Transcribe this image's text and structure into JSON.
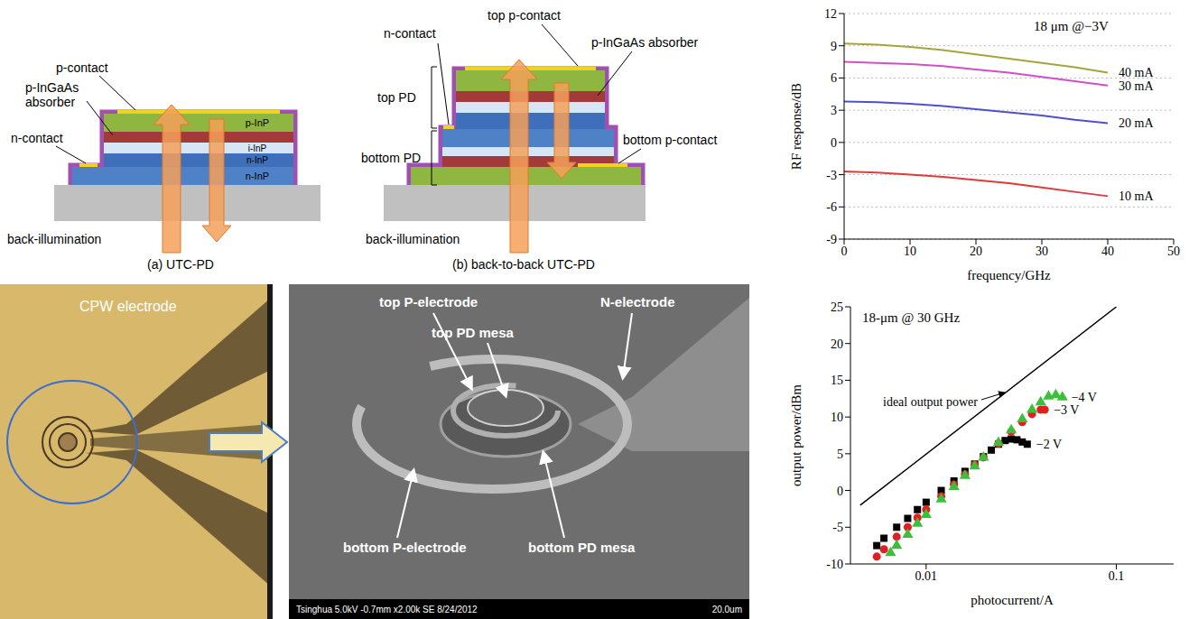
{
  "chart_data": [
    {
      "type": "line",
      "annotation": "18 μm @−3V",
      "x_label": "frequency/GHz",
      "y_label": "RF response/dB",
      "xlim": [
        0,
        50
      ],
      "xticks": [
        0,
        10,
        20,
        30,
        40,
        50
      ],
      "ylim": [
        -9,
        12
      ],
      "yticks": [
        -9,
        -6,
        -3,
        0,
        3,
        6,
        9,
        12
      ],
      "grid": true,
      "x": [
        0,
        5,
        10,
        15,
        20,
        25,
        30,
        35,
        40
      ],
      "series": [
        {
          "name": "40 mA",
          "color": "#a5a53a",
          "values": [
            9.2,
            9.1,
            8.9,
            8.6,
            8.2,
            7.8,
            7.4,
            7.0,
            6.5
          ]
        },
        {
          "name": "30 mA",
          "color": "#d24fc4",
          "values": [
            7.5,
            7.4,
            7.3,
            7.1,
            6.8,
            6.5,
            6.1,
            5.7,
            5.3
          ]
        },
        {
          "name": "20 mA",
          "color": "#4f4fd0",
          "values": [
            3.8,
            3.75,
            3.6,
            3.4,
            3.1,
            2.8,
            2.5,
            2.1,
            1.8
          ]
        },
        {
          "name": "10 mA",
          "color": "#e03a3a",
          "values": [
            -2.7,
            -2.8,
            -3.0,
            -3.2,
            -3.5,
            -3.8,
            -4.2,
            -4.6,
            -5.0
          ]
        }
      ]
    },
    {
      "type": "scatter",
      "annotation": "18-μm @ 30 GHz",
      "x_label": "photocurrent/A",
      "y_label": "output power/dBm",
      "log": "x",
      "grid": false,
      "xlim": [
        0.004,
        0.2
      ],
      "xticks": [
        0.01,
        0.1
      ],
      "ylim": [
        -10,
        25
      ],
      "yticks": [
        -10,
        -5,
        0,
        5,
        10,
        15,
        20,
        25
      ],
      "series": [
        {
          "name": "ideal output power",
          "type": "line",
          "color": "#000000",
          "x": [
            0.0045,
            0.1
          ],
          "values": [
            -2,
            25
          ]
        },
        {
          "name": "−2 V",
          "type": "scatter",
          "marker": "square",
          "color": "#000000",
          "x": [
            0.0055,
            0.006,
            0.007,
            0.008,
            0.009,
            0.01,
            0.012,
            0.014,
            0.016,
            0.018,
            0.02,
            0.022,
            0.024,
            0.026,
            0.028,
            0.03,
            0.032,
            0.034
          ],
          "values": [
            -7.5,
            -6.5,
            -5,
            -3.8,
            -2.6,
            -1.6,
            0,
            1.3,
            2.6,
            3.6,
            4.6,
            5.5,
            6.3,
            6.8,
            7,
            6.9,
            6.6,
            6.3
          ]
        },
        {
          "name": "−3 V",
          "type": "scatter",
          "marker": "circle",
          "color": "#e02020",
          "x": [
            0.0055,
            0.006,
            0.007,
            0.008,
            0.009,
            0.01,
            0.012,
            0.014,
            0.016,
            0.018,
            0.02,
            0.024,
            0.028,
            0.032,
            0.036,
            0.04,
            0.042
          ],
          "values": [
            -9,
            -8,
            -6.3,
            -5,
            -3.7,
            -2.6,
            -0.8,
            0.8,
            2.2,
            3.5,
            4.5,
            6.4,
            8,
            9.3,
            10.4,
            11,
            11
          ]
        },
        {
          "name": "−4 V",
          "type": "scatter",
          "marker": "triangle",
          "color": "#3cc03c",
          "x": [
            0.0065,
            0.007,
            0.008,
            0.009,
            0.01,
            0.012,
            0.014,
            0.016,
            0.018,
            0.02,
            0.024,
            0.028,
            0.032,
            0.036,
            0.04,
            0.044,
            0.048,
            0.052
          ],
          "values": [
            -8.5,
            -7.5,
            -6,
            -4.5,
            -3.3,
            -1.2,
            0.5,
            2,
            3.3,
            4.5,
            6.5,
            8.2,
            9.7,
            11,
            12,
            12.8,
            13,
            12.7
          ]
        }
      ]
    }
  ],
  "diagrams": {
    "a": {
      "caption": "(a) UTC-PD",
      "p_contact": "p-contact",
      "absorber": "p-InGaAs absorber",
      "n_contact": "n-contact",
      "layers": [
        "p-InP",
        "i-InP",
        "n-InP",
        "n-InP"
      ],
      "illumination": "back-illumination"
    },
    "b": {
      "caption": "(b) back-to-back UTC-PD",
      "n_contact": "n-contact",
      "top_contact": "top p-contact",
      "top_pd": "top PD",
      "absorber": "p-InGaAs absorber",
      "bottom_pd": "bottom PD",
      "bottom_contact": "bottom p-contact",
      "illumination": "back-illumination"
    }
  },
  "photos": {
    "microscope": {
      "label": "CPW electrode"
    },
    "sem": {
      "labels": [
        "top P-electrode",
        "top PD mesa",
        "N-electrode",
        "bottom P-electrode",
        "bottom PD mesa"
      ],
      "footer": "Tsinghua 5.0kV -0.7mm x2.00k SE 8/24/2012",
      "scale": "20.0um"
    }
  }
}
